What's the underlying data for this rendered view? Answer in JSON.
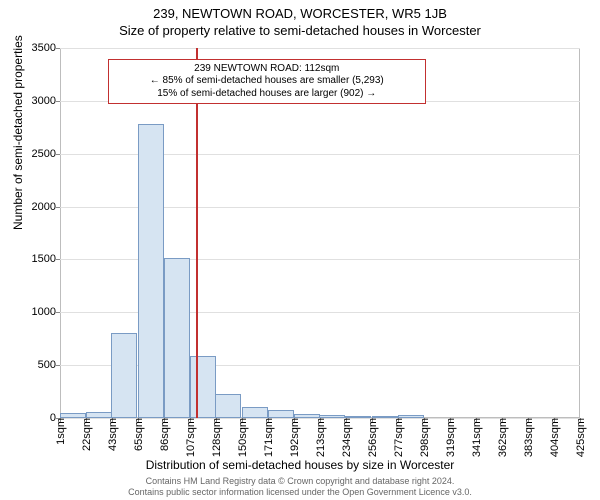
{
  "title_main": "239, NEWTOWN ROAD, WORCESTER, WR5 1JB",
  "title_sub": "Size of property relative to semi-detached houses in Worcester",
  "axes": {
    "ylabel": "Number of semi-detached properties",
    "xlabel": "Distribution of semi-detached houses by size in Worcester",
    "ylim": [
      0,
      3500
    ],
    "ytick_step": 500,
    "x_min": 1,
    "x_max": 426,
    "x_tick_step": 21.25,
    "x_tick_labels": [
      "1sqm",
      "22sqm",
      "43sqm",
      "65sqm",
      "86sqm",
      "107sqm",
      "128sqm",
      "150sqm",
      "171sqm",
      "192sqm",
      "213sqm",
      "234sqm",
      "256sqm",
      "277sqm",
      "298sqm",
      "319sqm",
      "341sqm",
      "362sqm",
      "383sqm",
      "404sqm",
      "425sqm"
    ],
    "grid_color": "#e0e0e0",
    "background_color": "#ffffff",
    "border_color": "#bdbdbd"
  },
  "histogram": {
    "bar_fill": "#d6e4f2",
    "bar_stroke": "#7a9bc4",
    "bin_width_sqm": 21.25,
    "bins": [
      {
        "x": 1,
        "count": 50
      },
      {
        "x": 22,
        "count": 60
      },
      {
        "x": 43,
        "count": 800
      },
      {
        "x": 65,
        "count": 2780
      },
      {
        "x": 86,
        "count": 1510
      },
      {
        "x": 107,
        "count": 590
      },
      {
        "x": 128,
        "count": 230
      },
      {
        "x": 150,
        "count": 100
      },
      {
        "x": 171,
        "count": 80
      },
      {
        "x": 192,
        "count": 40
      },
      {
        "x": 213,
        "count": 30
      },
      {
        "x": 234,
        "count": 20
      },
      {
        "x": 256,
        "count": 10
      },
      {
        "x": 277,
        "count": 30
      },
      {
        "x": 298,
        "count": 0
      },
      {
        "x": 319,
        "count": 0
      },
      {
        "x": 341,
        "count": 0
      },
      {
        "x": 362,
        "count": 0
      },
      {
        "x": 383,
        "count": 0
      },
      {
        "x": 404,
        "count": 0
      }
    ]
  },
  "marker": {
    "value_sqm": 112,
    "line_color": "#c23030",
    "box_border": "#c23030",
    "lines": [
      "239 NEWTOWN ROAD: 112sqm",
      "← 85% of semi-detached houses are smaller (5,293)",
      "15% of semi-detached houses are larger (902) →"
    ],
    "box_left_sqm": 40,
    "box_width_sqm": 260,
    "box_top_count": 3400,
    "box_height_count": 450
  },
  "credits": {
    "line1": "Contains HM Land Registry data © Crown copyright and database right 2024.",
    "line2": "Contains public sector information licensed under the Open Government Licence v3.0."
  },
  "typography": {
    "title_fontsize": 13,
    "axis_label_fontsize": 12,
    "tick_fontsize": 11,
    "infobox_fontsize": 10,
    "credits_fontsize": 9
  }
}
